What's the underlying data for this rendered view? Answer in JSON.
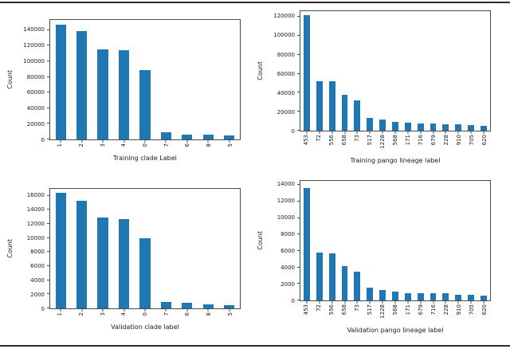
{
  "figure": {
    "background": "#ffffff",
    "rule_color": "#2b2b2b",
    "bar_color": "#1f77b4"
  },
  "chart_data": [
    {
      "type": "bar",
      "title": "",
      "categories": [
        "1",
        "2",
        "3",
        "4",
        "0",
        "7",
        "6",
        "8",
        "5"
      ],
      "values": [
        147000,
        139000,
        115000,
        114500,
        89000,
        9000,
        6500,
        6000,
        5000
      ],
      "xlabel": "Training clade Label",
      "ylabel": "Count",
      "ylim": [
        0,
        153000
      ],
      "yticks": [
        0,
        20000,
        40000,
        60000,
        80000,
        100000,
        120000,
        140000
      ],
      "bar_color": "#1f77b4",
      "grid": false,
      "legend": false,
      "xtick_rotation": 90
    },
    {
      "type": "bar",
      "title": "",
      "categories": [
        "453",
        "72",
        "556",
        "658",
        "73",
        "517",
        "1228",
        "568",
        "171",
        "716",
        "679",
        "228",
        "910",
        "705",
        "620"
      ],
      "values": [
        121500,
        52000,
        51800,
        37500,
        32000,
        13500,
        11500,
        9000,
        8000,
        7400,
        7200,
        7000,
        7000,
        6000,
        5200
      ],
      "xlabel": "Training pango lineage label",
      "ylabel": "Count",
      "ylim": [
        0,
        126000
      ],
      "yticks": [
        0,
        20000,
        40000,
        60000,
        80000,
        100000,
        120000
      ],
      "bar_color": "#1f77b4",
      "grid": false,
      "legend": false,
      "xtick_rotation": 90
    },
    {
      "type": "bar",
      "title": "",
      "categories": [
        "1",
        "2",
        "3",
        "4",
        "0",
        "7",
        "6",
        "8",
        "5"
      ],
      "values": [
        16400,
        15300,
        12900,
        12750,
        10000,
        950,
        750,
        600,
        500
      ],
      "xlabel": "Validation clade label",
      "ylabel": "Count",
      "ylim": [
        0,
        17000
      ],
      "yticks": [
        0,
        2000,
        4000,
        6000,
        8000,
        10000,
        12000,
        14000,
        16000
      ],
      "bar_color": "#1f77b4",
      "grid": false,
      "legend": false,
      "xtick_rotation": 90
    },
    {
      "type": "bar",
      "title": "",
      "categories": [
        "453",
        "72",
        "556",
        "658",
        "73",
        "517",
        "1228",
        "568",
        "171",
        "679",
        "716",
        "228",
        "910",
        "705",
        "620"
      ],
      "values": [
        13600,
        5800,
        5700,
        4200,
        3500,
        1550,
        1300,
        1050,
        900,
        850,
        850,
        850,
        700,
        650,
        600
      ],
      "xlabel": "Validation pango lineage label",
      "ylabel": "Count",
      "ylim": [
        0,
        14500
      ],
      "yticks": [
        0,
        2000,
        4000,
        6000,
        8000,
        10000,
        12000,
        14000
      ],
      "bar_color": "#1f77b4",
      "grid": false,
      "legend": false,
      "xtick_rotation": 90
    }
  ]
}
